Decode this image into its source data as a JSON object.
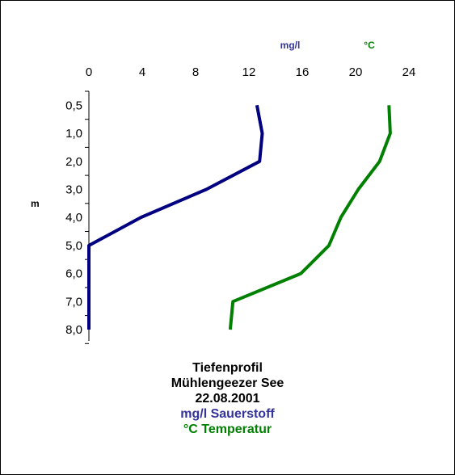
{
  "chart_data": {
    "type": "line",
    "orientation": "vertical-profile",
    "x_ticks": [
      0,
      4,
      8,
      12,
      16,
      20,
      24
    ],
    "xlim": [
      0,
      24
    ],
    "y_categories": [
      "0,5",
      "1,0",
      "2,0",
      "3,0",
      "4,0",
      "5,0",
      "6,0",
      "7,0",
      "8,0"
    ],
    "ylabel": "m",
    "units": {
      "oxygen": "mg/l",
      "temperature": "°C"
    },
    "series": [
      {
        "key": "oxygen",
        "color": "#000080",
        "values": [
          12.6,
          13.0,
          12.8,
          8.8,
          3.9,
          0.0,
          0.0,
          0.0,
          0.0
        ]
      },
      {
        "key": "temperature",
        "color": "#008000",
        "values": [
          22.5,
          22.6,
          21.8,
          20.2,
          18.9,
          18.0,
          15.9,
          10.8,
          10.6
        ]
      }
    ],
    "grid": false,
    "legend": "none"
  },
  "caption": {
    "line1": "Tiefenprofil",
    "line2": "Mühlengeezer See",
    "line3": "22.08.2001",
    "line4": "mg/l Sauerstoff",
    "line5": "°C Temperatur"
  },
  "colors": {
    "oxygen": "#000080",
    "temperature": "#008000",
    "axis": "#000000"
  }
}
